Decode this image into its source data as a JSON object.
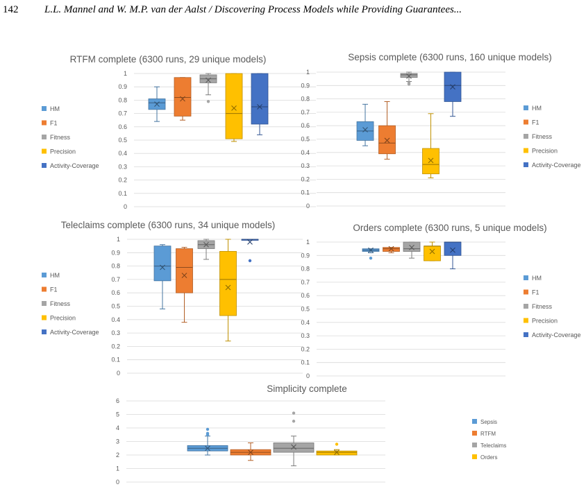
{
  "header": {
    "page_number": "142",
    "running_title": "L.L. Mannel and W. M.P. van der Aalst / Discovering Process Models while Providing Guarantees..."
  },
  "colors": {
    "HM": "#5b9bd5",
    "F1": "#ed7d31",
    "Fitness": "#a5a5a5",
    "Precision": "#ffc000",
    "Activity-Coverage": "#4472c4",
    "Sepsis": "#5b9bd5",
    "RTFM": "#ed7d31",
    "Teleclaims": "#a5a5a5",
    "Orders": "#ffc000"
  },
  "chart_data": [
    {
      "type": "box",
      "title": "RTFM complete (6300 runs, 29 unique models)",
      "yticks": [
        "0",
        "0.1",
        "0.2",
        "0.3",
        "0.4",
        "0.5",
        "0.6",
        "0.7",
        "0.8",
        "0.9",
        "1"
      ],
      "ylim": [
        0,
        1
      ],
      "legend": [
        "HM",
        "F1",
        "Fitness",
        "Precision",
        "Activity-Coverage"
      ],
      "legend_position": "left",
      "series": [
        {
          "name": "HM",
          "min": 0.64,
          "q1": 0.73,
          "median": 0.78,
          "q3": 0.81,
          "max": 0.9,
          "mean": 0.77,
          "outliers": []
        },
        {
          "name": "F1",
          "min": 0.65,
          "q1": 0.68,
          "median": 0.82,
          "q3": 0.97,
          "max": 0.97,
          "mean": 0.81,
          "outliers": []
        },
        {
          "name": "Fitness",
          "min": 0.84,
          "q1": 0.93,
          "median": 0.96,
          "q3": 0.99,
          "max": 1.0,
          "mean": 0.95,
          "outliers": [
            0.79
          ]
        },
        {
          "name": "Precision",
          "min": 0.49,
          "q1": 0.51,
          "median": 0.7,
          "q3": 1.0,
          "max": 1.0,
          "mean": 0.74,
          "outliers": []
        },
        {
          "name": "Activity-Coverage",
          "min": 0.54,
          "q1": 0.62,
          "median": 0.75,
          "q3": 1.0,
          "max": 1.0,
          "mean": 0.75,
          "outliers": []
        }
      ]
    },
    {
      "type": "box",
      "title": "Sepsis complete (6300 runs, 160 unique models)",
      "yticks": [
        "0",
        "0.1",
        "0.2",
        "0.3",
        "0.4",
        "0.5",
        "0.6",
        "0.7",
        "0.8",
        "0.9",
        "1"
      ],
      "ylim": [
        0,
        1
      ],
      "legend": [
        "HM",
        "F1",
        "Fitness",
        "Precision",
        "Activity-Coverage"
      ],
      "legend_position": "right",
      "series": [
        {
          "name": "HM",
          "min": 0.45,
          "q1": 0.49,
          "median": 0.56,
          "q3": 0.63,
          "max": 0.76,
          "mean": 0.57,
          "outliers": []
        },
        {
          "name": "F1",
          "min": 0.35,
          "q1": 0.39,
          "median": 0.47,
          "q3": 0.6,
          "max": 0.78,
          "mean": 0.49,
          "outliers": []
        },
        {
          "name": "Fitness",
          "min": 0.93,
          "q1": 0.96,
          "median": 0.98,
          "q3": 0.99,
          "max": 1.0,
          "mean": 0.97,
          "outliers": [
            0.91,
            0.92
          ]
        },
        {
          "name": "Precision",
          "min": 0.21,
          "q1": 0.24,
          "median": 0.31,
          "q3": 0.43,
          "max": 0.69,
          "mean": 0.34,
          "outliers": []
        },
        {
          "name": "Activity-Coverage",
          "min": 0.67,
          "q1": 0.78,
          "median": 0.9,
          "q3": 1.0,
          "max": 1.0,
          "mean": 0.89,
          "outliers": []
        }
      ]
    },
    {
      "type": "box",
      "title": "Teleclaims complete (6300 runs, 34 unique models)",
      "yticks": [
        "0",
        "0.1",
        "0.2",
        "0.3",
        "0.4",
        "0.5",
        "0.6",
        "0.7",
        "0.8",
        "0.9",
        "1"
      ],
      "ylim": [
        0,
        1
      ],
      "legend": [
        "HM",
        "F1",
        "Fitness",
        "Precision",
        "Activity-Coverage"
      ],
      "legend_position": "left",
      "series": [
        {
          "name": "HM",
          "min": 0.48,
          "q1": 0.69,
          "median": 0.8,
          "q3": 0.95,
          "max": 0.96,
          "mean": 0.79,
          "outliers": []
        },
        {
          "name": "F1",
          "min": 0.38,
          "q1": 0.6,
          "median": 0.79,
          "q3": 0.93,
          "max": 0.94,
          "mean": 0.73,
          "outliers": []
        },
        {
          "name": "Fitness",
          "min": 0.85,
          "q1": 0.93,
          "median": 0.96,
          "q3": 0.99,
          "max": 1.0,
          "mean": 0.96,
          "outliers": []
        },
        {
          "name": "Precision",
          "min": 0.24,
          "q1": 0.43,
          "median": 0.7,
          "q3": 0.91,
          "max": 1.0,
          "mean": 0.64,
          "outliers": []
        },
        {
          "name": "Activity-Coverage",
          "min": 1.0,
          "q1": 1.0,
          "median": 1.0,
          "q3": 1.0,
          "max": 1.0,
          "mean": 0.98,
          "outliers": [
            0.84
          ]
        }
      ]
    },
    {
      "type": "box",
      "title": "Orders complete (6300 runs, 5 unique models)",
      "yticks": [
        "0",
        "0.1",
        "0.2",
        "0.3",
        "0.4",
        "0.5",
        "0.6",
        "0.7",
        "0.8",
        "0.9",
        "1"
      ],
      "ylim": [
        0,
        1
      ],
      "legend": [
        "HM",
        "F1",
        "Fitness",
        "Precision",
        "Activity-Coverage"
      ],
      "legend_position": "right",
      "series": [
        {
          "name": "HM",
          "min": 0.92,
          "q1": 0.93,
          "median": 0.94,
          "q3": 0.95,
          "max": 0.95,
          "mean": 0.94,
          "outliers": [
            0.88
          ]
        },
        {
          "name": "F1",
          "min": 0.92,
          "q1": 0.93,
          "median": 0.95,
          "q3": 0.96,
          "max": 0.96,
          "mean": 0.95,
          "outliers": []
        },
        {
          "name": "Fitness",
          "min": 0.88,
          "q1": 0.93,
          "median": 0.95,
          "q3": 1.0,
          "max": 1.0,
          "mean": 0.96,
          "outliers": []
        },
        {
          "name": "Precision",
          "min": 0.86,
          "q1": 0.86,
          "median": 0.97,
          "q3": 0.97,
          "max": 1.0,
          "mean": 0.93,
          "outliers": []
        },
        {
          "name": "Activity-Coverage",
          "min": 0.8,
          "q1": 0.9,
          "median": 1.0,
          "q3": 1.0,
          "max": 1.0,
          "mean": 0.94,
          "outliers": []
        }
      ]
    },
    {
      "type": "box",
      "title": "Simplicity complete",
      "yticks": [
        "0",
        "1",
        "2",
        "3",
        "4",
        "5",
        "6"
      ],
      "ylim": [
        0,
        6
      ],
      "legend": [
        "Sepsis",
        "RTFM",
        "Teleclaims",
        "Orders"
      ],
      "legend_position": "right",
      "series": [
        {
          "name": "Sepsis",
          "min": 2.0,
          "q1": 2.3,
          "median": 2.5,
          "q3": 2.7,
          "max": 3.4,
          "mean": 2.5,
          "outliers": [
            3.5,
            3.6,
            3.9
          ]
        },
        {
          "name": "RTFM",
          "min": 1.6,
          "q1": 2.0,
          "median": 2.2,
          "q3": 2.4,
          "max": 2.9,
          "mean": 2.2,
          "outliers": []
        },
        {
          "name": "Teleclaims",
          "min": 1.2,
          "q1": 2.2,
          "median": 2.5,
          "q3": 2.9,
          "max": 3.4,
          "mean": 2.6,
          "outliers": [
            4.5,
            5.1
          ]
        },
        {
          "name": "Orders",
          "min": 2.0,
          "q1": 2.0,
          "median": 2.2,
          "q3": 2.3,
          "max": 2.4,
          "mean": 2.2,
          "outliers": [
            2.8
          ]
        }
      ]
    }
  ]
}
